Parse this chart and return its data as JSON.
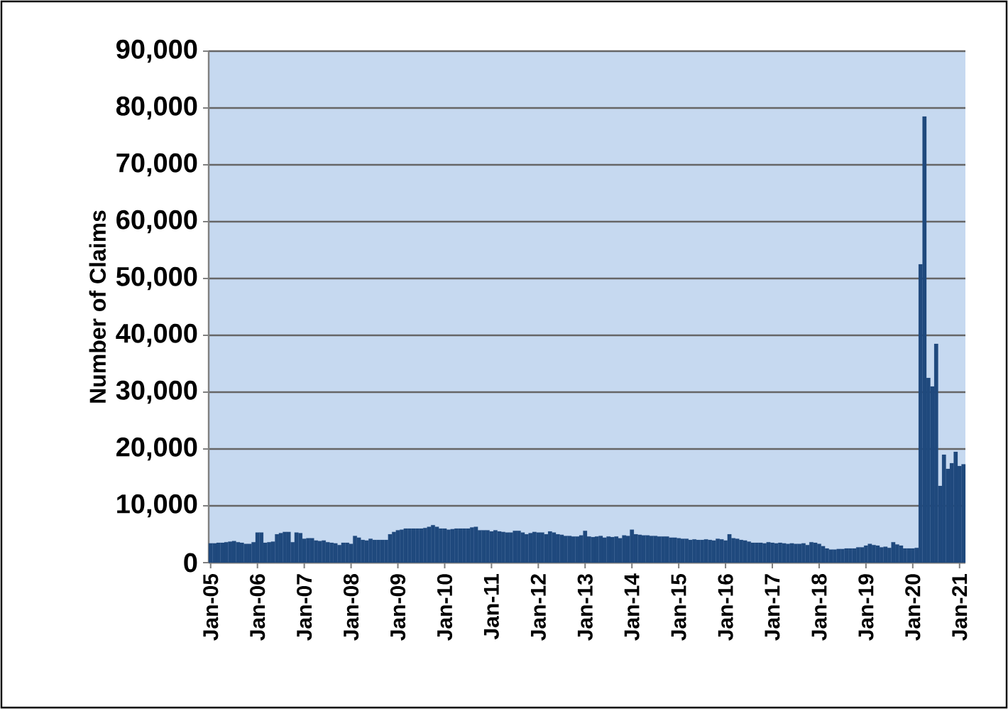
{
  "chart_data": {
    "type": "bar",
    "ylabel": "Number of Claims",
    "categories": [
      "Jan-05",
      null,
      null,
      null,
      null,
      null,
      null,
      null,
      null,
      null,
      null,
      null,
      "Jan-06",
      null,
      null,
      null,
      null,
      null,
      null,
      null,
      null,
      null,
      null,
      null,
      "Jan-07",
      null,
      null,
      null,
      null,
      null,
      null,
      null,
      null,
      null,
      null,
      null,
      "Jan-08",
      null,
      null,
      null,
      null,
      null,
      null,
      null,
      null,
      null,
      null,
      null,
      "Jan-09",
      null,
      null,
      null,
      null,
      null,
      null,
      null,
      null,
      null,
      null,
      null,
      "Jan-10",
      null,
      null,
      null,
      null,
      null,
      null,
      null,
      null,
      null,
      null,
      null,
      "Jan-11",
      null,
      null,
      null,
      null,
      null,
      null,
      null,
      null,
      null,
      null,
      null,
      "Jan-12",
      null,
      null,
      null,
      null,
      null,
      null,
      null,
      null,
      null,
      null,
      null,
      "Jan-13",
      null,
      null,
      null,
      null,
      null,
      null,
      null,
      null,
      null,
      null,
      null,
      "Jan-14",
      null,
      null,
      null,
      null,
      null,
      null,
      null,
      null,
      null,
      null,
      null,
      "Jan-15",
      null,
      null,
      null,
      null,
      null,
      null,
      null,
      null,
      null,
      null,
      null,
      "Jan-16",
      null,
      null,
      null,
      null,
      null,
      null,
      null,
      null,
      null,
      null,
      null,
      "Jan-17",
      null,
      null,
      null,
      null,
      null,
      null,
      null,
      null,
      null,
      null,
      null,
      "Jan-18",
      null,
      null,
      null,
      null,
      null,
      null,
      null,
      null,
      null,
      null,
      null,
      "Jan-19",
      null,
      null,
      null,
      null,
      null,
      null,
      null,
      null,
      null,
      null,
      null,
      "Jan-20",
      null,
      null,
      null,
      null,
      null,
      null,
      null,
      null,
      null,
      null,
      null,
      "Jan-21",
      null
    ],
    "values": [
      3400,
      3400,
      3500,
      3500,
      3600,
      3700,
      3800,
      3600,
      3500,
      3300,
      3300,
      3600,
      5300,
      5300,
      3500,
      3600,
      3700,
      5000,
      5200,
      5400,
      5400,
      3600,
      5300,
      5200,
      4200,
      4300,
      4300,
      3900,
      3800,
      3900,
      3600,
      3500,
      3400,
      3100,
      3500,
      3500,
      3300,
      4700,
      4400,
      4000,
      3900,
      4200,
      4000,
      4000,
      4000,
      4000,
      5000,
      5400,
      5700,
      5800,
      6000,
      6000,
      6000,
      6000,
      6000,
      6100,
      6300,
      6600,
      6300,
      6000,
      6000,
      5800,
      5900,
      6000,
      6000,
      6000,
      6000,
      6200,
      6300,
      5700,
      5700,
      5700,
      5500,
      5700,
      5500,
      5400,
      5300,
      5300,
      5600,
      5600,
      5300,
      5000,
      5200,
      5400,
      5300,
      5300,
      5000,
      5500,
      5300,
      5000,
      4900,
      4700,
      4700,
      4600,
      4600,
      4800,
      5600,
      4600,
      4500,
      4600,
      4700,
      4400,
      4600,
      4500,
      4600,
      4300,
      4800,
      4700,
      5800,
      5000,
      4900,
      4800,
      4800,
      4700,
      4700,
      4600,
      4600,
      4600,
      4400,
      4400,
      4300,
      4200,
      4200,
      4000,
      4100,
      4000,
      4000,
      4100,
      4000,
      3900,
      4200,
      4100,
      3900,
      5000,
      4300,
      4200,
      4000,
      3900,
      3700,
      3500,
      3500,
      3500,
      3400,
      3600,
      3500,
      3400,
      3500,
      3400,
      3300,
      3400,
      3300,
      3300,
      3400,
      3100,
      3600,
      3500,
      3300,
      2900,
      2500,
      2300,
      2300,
      2400,
      2400,
      2500,
      2500,
      2500,
      2700,
      2700,
      3000,
      3300,
      3100,
      3000,
      2700,
      2800,
      2600,
      3600,
      3200,
      3000,
      2500,
      2500,
      2500,
      2600,
      52500,
      78500,
      32500,
      31000,
      38500,
      13500,
      19000,
      16500,
      17500,
      19500,
      17000,
      17300
    ],
    "color": "#1f497d",
    "ylim": [
      0,
      90000
    ],
    "yticks": [
      0,
      {
        "value": 10000,
        "label": "10,000"
      },
      {
        "value": 20000,
        "label": "20,000"
      },
      {
        "value": 30000,
        "label": "30,000"
      },
      {
        "value": 40000,
        "label": "40,000"
      },
      {
        "value": 50000,
        "label": "50,000"
      },
      {
        "value": 60000,
        "label": "60,000"
      },
      {
        "value": 70000,
        "label": "70,000"
      },
      {
        "value": 80000,
        "label": "80,000"
      },
      {
        "value": 90000,
        "label": "90,000"
      }
    ],
    "grid": "y"
  }
}
